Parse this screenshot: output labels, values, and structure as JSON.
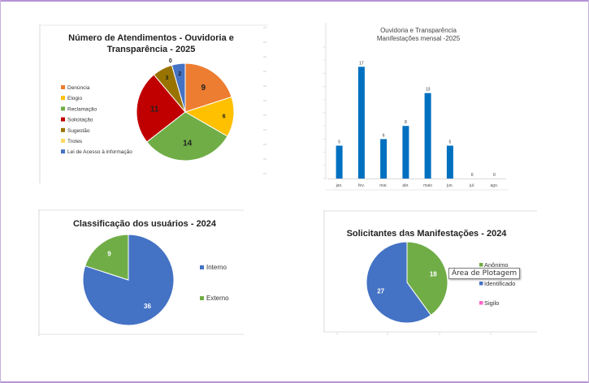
{
  "chart_data": [
    {
      "type": "pie",
      "title": "Número de Atendimentos - Ouvidoria e Transparência - 2025",
      "title_lines": [
        "Número de Atendimentos - Ouvidoria e",
        "Transparência - 2025"
      ],
      "legend_position": "left",
      "categories": [
        "Denúncia",
        "Elogio",
        "Reclamação",
        "Solicitação",
        "Sugestão",
        "Trotes",
        "Lei de Acesso à informação"
      ],
      "values": [
        9,
        6,
        14,
        11,
        3,
        0,
        2
      ],
      "colors": [
        "#ed7d31",
        "#ffc000",
        "#70ad47",
        "#c00000",
        "#997300",
        "#ffd966",
        "#4472c4"
      ]
    },
    {
      "type": "bar",
      "title": "Ouvidoria e Transparência Manifestações mensal -2025",
      "title_lines": [
        "Ouvidoria e Transparência",
        "Manifestações mensal -2025"
      ],
      "categories": [
        "jan.",
        "fev.",
        "mar.",
        "abr.",
        "maio",
        "jun.",
        "jul.",
        "ago."
      ],
      "values": [
        5,
        17,
        6,
        8,
        13,
        5,
        0,
        0
      ],
      "ylim": [
        0,
        20
      ],
      "grid": false,
      "color": "#0070c0"
    },
    {
      "type": "pie",
      "title": "Classificação dos usuários - 2024",
      "legend_position": "right",
      "categories": [
        "Interno",
        "Externo"
      ],
      "values": [
        36,
        9
      ],
      "colors": [
        "#4472c4",
        "#70ad47"
      ]
    },
    {
      "type": "pie",
      "title": "Solicitantes das Manifestações - 2024",
      "legend_position": "right",
      "categories": [
        "Anônimo",
        "Identificado",
        "Sigilo"
      ],
      "values": [
        18,
        27,
        0
      ],
      "colors": [
        "#70ad47",
        "#4472c4",
        "#ff66cc"
      ]
    }
  ],
  "tooltip": "Área de Plotagem"
}
